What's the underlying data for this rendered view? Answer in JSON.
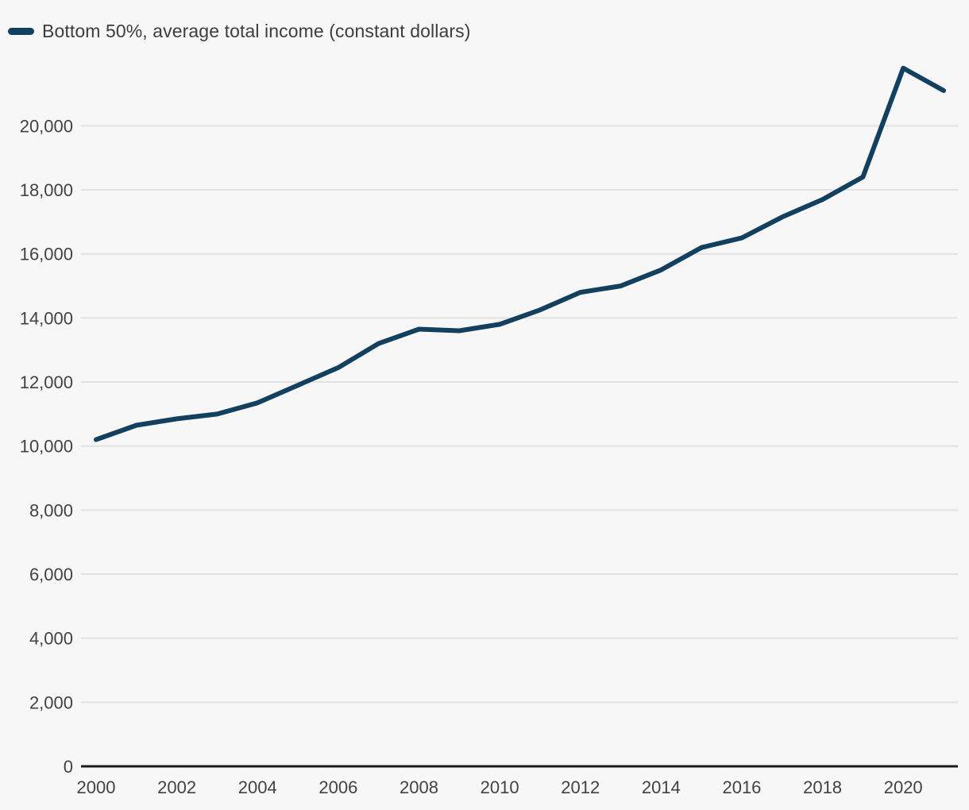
{
  "legend": {
    "label": "Bottom 50%, average total income (constant dollars)"
  },
  "colors": {
    "background": "#f7f7f8",
    "line": "#12405e",
    "gridline": "#e2e2e3",
    "axis_line": "#1c1c1c",
    "tick_text": "#424242",
    "legend_text": "#3d3d3d"
  },
  "chart_data": {
    "type": "line",
    "title": "",
    "legend": "Bottom 50%, average total income (constant dollars)",
    "series": [
      {
        "name": "Bottom 50%, average total income (constant dollars)",
        "x": [
          2000,
          2001,
          2002,
          2003,
          2004,
          2005,
          2006,
          2007,
          2008,
          2009,
          2010,
          2011,
          2012,
          2013,
          2014,
          2015,
          2016,
          2017,
          2018,
          2019,
          2020,
          2021
        ],
        "values": [
          10200,
          10650,
          10850,
          11000,
          11350,
          11900,
          12450,
          13200,
          13650,
          13600,
          13800,
          14250,
          14800,
          15000,
          15500,
          16200,
          16500,
          17150,
          17700,
          18400,
          21800,
          21100
        ]
      }
    ],
    "xlabel": "",
    "ylabel": "",
    "x_ticks": [
      2000,
      2002,
      2004,
      2006,
      2008,
      2010,
      2012,
      2014,
      2016,
      2018,
      2020
    ],
    "y_ticks": [
      0,
      2000,
      4000,
      6000,
      8000,
      10000,
      12000,
      14000,
      16000,
      18000,
      20000
    ],
    "xlim": [
      2000,
      2021
    ],
    "ylim": [
      0,
      22000
    ],
    "grid": "horizontal",
    "legend_position": "top-left",
    "y_tick_format": "comma-thousands"
  }
}
